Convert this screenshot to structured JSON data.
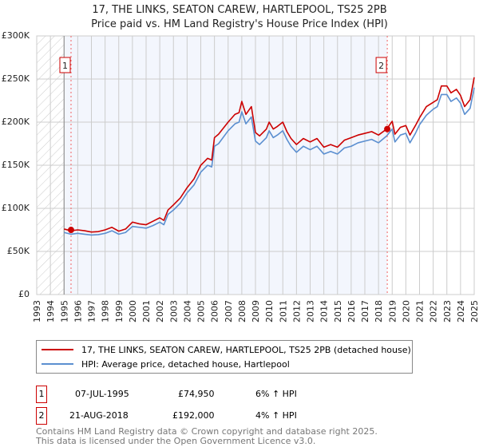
{
  "chart_data": {
    "type": "line",
    "title": "17, THE LINKS, SEATON CAREW, HARTLEPOOL, TS25 2PB",
    "subtitle": "Price paid vs. HM Land Registry's House Price Index (HPI)",
    "xlim": [
      1993,
      2025
    ],
    "ylim": [
      0,
      300000
    ],
    "x_ticks": [
      "1993",
      "1994",
      "1995",
      "1996",
      "1997",
      "1998",
      "1999",
      "2000",
      "2001",
      "2002",
      "2003",
      "2004",
      "2005",
      "2006",
      "2007",
      "2008",
      "2009",
      "2010",
      "2011",
      "2012",
      "2013",
      "2014",
      "2015",
      "2016",
      "2017",
      "2018",
      "2019",
      "2020",
      "2021",
      "2022",
      "2023",
      "2024",
      "2025"
    ],
    "y_ticks": [
      {
        "v": 0,
        "label": "£0"
      },
      {
        "v": 50000,
        "label": "£50K"
      },
      {
        "v": 100000,
        "label": "£100K"
      },
      {
        "v": 150000,
        "label": "£150K"
      },
      {
        "v": 200000,
        "label": "£200K"
      },
      {
        "v": 250000,
        "label": "£250K"
      },
      {
        "v": 300000,
        "label": "£300K"
      }
    ],
    "grid": true,
    "x": [
      1995.0,
      1995.5,
      1996,
      1996.5,
      1997,
      1997.5,
      1998,
      1998.5,
      1999,
      1999.5,
      2000,
      2000.5,
      2001,
      2001.5,
      2002,
      2002.3,
      2002.6,
      2003,
      2003.5,
      2004,
      2004.5,
      2005,
      2005.5,
      2005.8,
      2006,
      2006.3,
      2007,
      2007.5,
      2007.8,
      2008,
      2008.3,
      2008.7,
      2009,
      2009.3,
      2009.8,
      2010,
      2010.3,
      2010.6,
      2011,
      2011.3,
      2011.6,
      2012,
      2012.5,
      2013,
      2013.5,
      2014,
      2014.5,
      2015,
      2015.5,
      2016,
      2016.5,
      2017,
      2017.5,
      2018,
      2018.6,
      2019,
      2019.2,
      2019.6,
      2020,
      2020.3,
      2020.7,
      2021,
      2021.5,
      2022,
      2022.3,
      2022.6,
      2023,
      2023.3,
      2023.7,
      2024,
      2024.3,
      2024.7,
      2025
    ],
    "series": [
      {
        "name": "17, THE LINKS, SEATON CAREW, HARTLEPOOL, TS25 2PB (detached house)",
        "color": "#cc0000",
        "values": [
          76000,
          74000,
          75000,
          74000,
          72500,
          73000,
          75000,
          78000,
          73500,
          76000,
          84000,
          82000,
          81000,
          85000,
          89000,
          86000,
          98000,
          104000,
          112000,
          124000,
          134000,
          150000,
          158000,
          156000,
          182000,
          186000,
          200000,
          209000,
          211000,
          224000,
          209000,
          218000,
          188000,
          184000,
          192000,
          200000,
          192000,
          195000,
          200000,
          189000,
          181000,
          174000,
          181000,
          177000,
          181000,
          171000,
          174000,
          171000,
          179000,
          182000,
          185000,
          187000,
          189000,
          185000,
          192000,
          201000,
          186000,
          194000,
          196000,
          185000,
          196000,
          205000,
          218000,
          223000,
          226000,
          242000,
          242000,
          234000,
          238000,
          231000,
          218000,
          226000,
          252000
        ]
      },
      {
        "name": "HPI: Average price, detached house, Hartlepool",
        "color": "#5b8fd0",
        "values": [
          72000,
          70000,
          71000,
          70000,
          69000,
          69500,
          71000,
          74000,
          70000,
          72000,
          79000,
          78000,
          77000,
          80000,
          84000,
          81000,
          93000,
          98000,
          106000,
          118000,
          127000,
          142000,
          150000,
          148000,
          172000,
          175000,
          190000,
          198000,
          200000,
          212000,
          198000,
          206000,
          178000,
          174000,
          182000,
          190000,
          182000,
          185000,
          190000,
          180000,
          172000,
          165000,
          172000,
          168000,
          172000,
          163000,
          166000,
          163000,
          170000,
          172000,
          176000,
          178000,
          180000,
          176000,
          184000,
          192000,
          177000,
          185000,
          187000,
          176000,
          187000,
          197000,
          208000,
          215000,
          218000,
          232000,
          232000,
          224000,
          228000,
          222000,
          209000,
          216000,
          240000
        ]
      }
    ],
    "sales": [
      {
        "id": "1",
        "x": 1995.51,
        "y": 74950,
        "date": "07-JUL-1995",
        "price": "£74,950",
        "hpi": "6% ↑ HPI"
      },
      {
        "id": "2",
        "x": 2018.64,
        "y": 192000,
        "date": "21-AUG-2018",
        "price": "£192,000",
        "hpi": "4% ↑ HPI"
      }
    ],
    "legend_placement": "below"
  },
  "footer": {
    "line1": "Contains HM Land Registry data © Crown copyright and database right 2025.",
    "line2": "This data is licensed under the Open Government Licence v3.0."
  }
}
